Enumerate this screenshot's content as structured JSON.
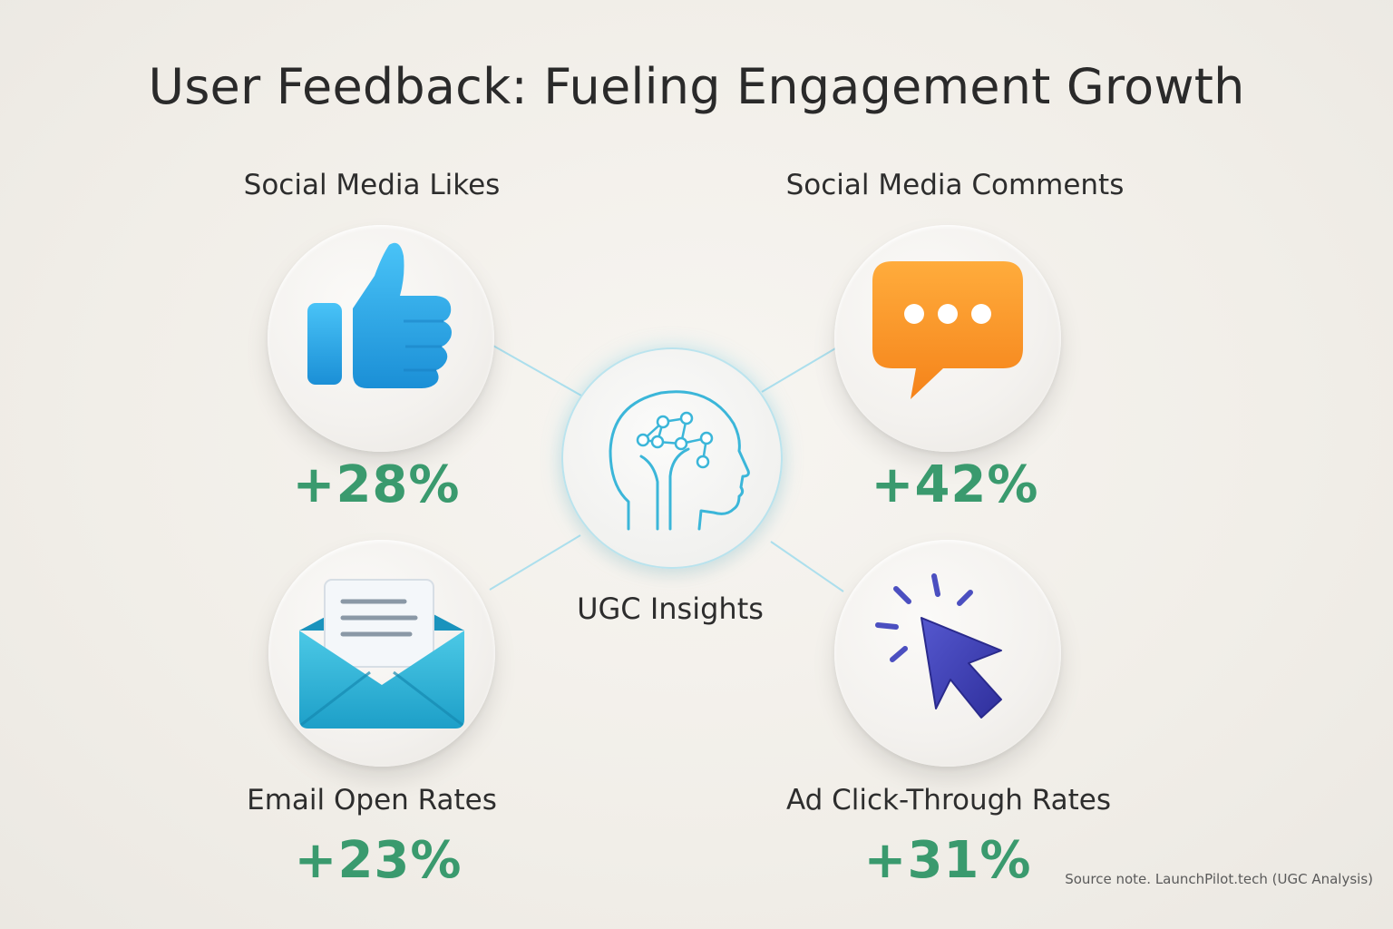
{
  "title": "User Feedback: Fueling Engagement Growth",
  "center": {
    "label": "UGC Insights",
    "icon": "brain-network-head-icon"
  },
  "metrics": [
    {
      "label": "Social Media Likes",
      "value": "+28%",
      "icon": "thumbs-up-icon",
      "color": "#2aa8e8"
    },
    {
      "label": "Social Media Comments",
      "value": "+42%",
      "icon": "chat-bubble-icon",
      "color": "#f7941d"
    },
    {
      "label": "Email Open Rates",
      "value": "+23%",
      "icon": "envelope-icon",
      "color": "#2bb3d6"
    },
    {
      "label": "Ad Click-Through Rates",
      "value": "+31%",
      "icon": "cursor-click-icon",
      "color": "#3d3fb0"
    }
  ],
  "source_note": "Source note. LaunchPilot.tech (UGC Analysis)",
  "colors": {
    "value_green": "#3a9a6e",
    "connector_cyan": "#8fd8ee",
    "background": "#f4f1ec"
  }
}
